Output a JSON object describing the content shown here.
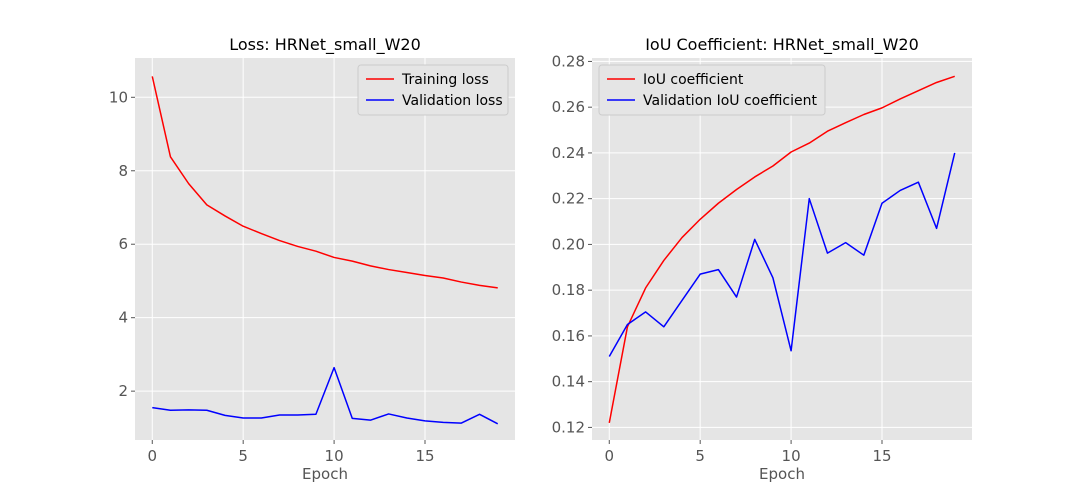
{
  "chart_data": [
    {
      "type": "line",
      "title": "Loss: HRNet_small_W20",
      "xlabel": "Epoch",
      "ylabel": "",
      "xlim": [
        -0.95,
        19.95
      ],
      "ylim": [
        0.67,
        11.07
      ],
      "xticks": [
        0,
        5,
        10,
        15
      ],
      "yticks": [
        2,
        4,
        6,
        8,
        10
      ],
      "grid": true,
      "legend_position": "top-right",
      "x": [
        0,
        1,
        2,
        3,
        4,
        5,
        6,
        7,
        8,
        9,
        10,
        11,
        12,
        13,
        14,
        15,
        16,
        17,
        18,
        19
      ],
      "series": [
        {
          "name": "Training loss",
          "color": "#ff0000",
          "values": [
            10.57,
            8.38,
            7.65,
            7.07,
            6.77,
            6.49,
            6.29,
            6.1,
            5.94,
            5.81,
            5.64,
            5.54,
            5.41,
            5.31,
            5.23,
            5.15,
            5.08,
            4.97,
            4.88,
            4.81
          ]
        },
        {
          "name": "Validation loss",
          "color": "#0000ff",
          "values": [
            1.55,
            1.48,
            1.49,
            1.48,
            1.34,
            1.27,
            1.27,
            1.35,
            1.35,
            1.37,
            2.64,
            1.26,
            1.21,
            1.38,
            1.27,
            1.19,
            1.15,
            1.13,
            1.37,
            1.11
          ]
        }
      ]
    },
    {
      "type": "line",
      "title": "IoU Coefficient: HRNet_small_W20",
      "xlabel": "Epoch",
      "ylabel": "",
      "xlim": [
        -0.95,
        19.95
      ],
      "ylim": [
        0.1145,
        0.2815
      ],
      "xticks": [
        0,
        5,
        10,
        15
      ],
      "yticks": [
        0.12,
        0.14,
        0.16,
        0.18,
        0.2,
        0.22,
        0.24,
        0.26,
        0.28
      ],
      "ytick_labels": [
        "0.12",
        "0.14",
        "0.16",
        "0.18",
        "0.20",
        "0.22",
        "0.24",
        "0.26",
        "0.28"
      ],
      "grid": true,
      "legend_position": "top-left",
      "x": [
        0,
        1,
        2,
        3,
        4,
        5,
        6,
        7,
        8,
        9,
        10,
        11,
        12,
        13,
        14,
        15,
        16,
        17,
        18,
        19
      ],
      "series": [
        {
          "name": "IoU coefficient",
          "color": "#ff0000",
          "values": [
            0.122,
            0.164,
            0.181,
            0.193,
            0.203,
            0.211,
            0.218,
            0.224,
            0.2295,
            0.2343,
            0.2404,
            0.2443,
            0.2495,
            0.2532,
            0.2568,
            0.2597,
            0.2636,
            0.2672,
            0.2708,
            0.2735
          ]
        },
        {
          "name": "Validation IoU coefficient",
          "color": "#0000ff",
          "values": [
            0.151,
            0.165,
            0.1705,
            0.164,
            0.1755,
            0.187,
            0.189,
            0.177,
            0.2022,
            0.1854,
            0.1535,
            0.22,
            0.1962,
            0.2008,
            0.1953,
            0.218,
            0.2236,
            0.2272,
            0.207,
            0.24
          ]
        }
      ]
    }
  ]
}
